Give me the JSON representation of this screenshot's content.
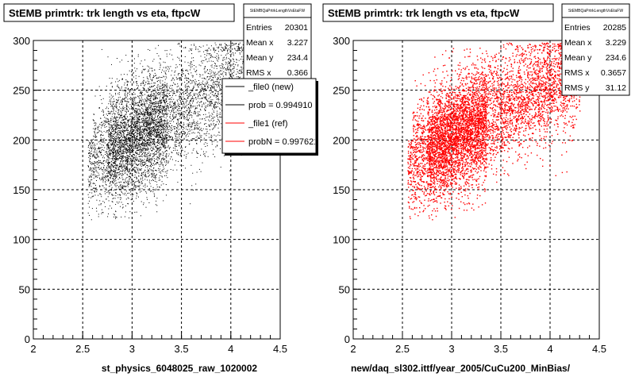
{
  "chart_data": [
    {
      "type": "scatter",
      "title": "StEMB primtrk: trk length vs eta, ftpcW",
      "xlabel": "st_physics_6048025_raw_1020002",
      "ylabel": "",
      "xlim": [
        2,
        4.5
      ],
      "ylim": [
        0,
        300
      ],
      "x_ticks": [
        "2",
        "2.5",
        "3",
        "3.5",
        "4",
        "4.5"
      ],
      "y_ticks": [
        "0",
        "50",
        "100",
        "150",
        "200",
        "250",
        "300"
      ],
      "grid": true,
      "marker_color": "#000000",
      "stats": {
        "name": "StEMBQaPrtrkLengthVsEtaFW",
        "rows": [
          {
            "label": "Entries",
            "value": "20301"
          },
          {
            "label": "Mean x",
            "value": "3.227"
          },
          {
            "label": "Mean y",
            "value": "234.4"
          },
          {
            "label": "RMS x",
            "value": "0.366"
          }
        ]
      },
      "legend": {
        "placement": "top-right",
        "entries": [
          {
            "label": "_file0 (new)",
            "color": "#000000"
          },
          {
            "label": "prob = 0.994910",
            "color": "#000000"
          },
          {
            "label": "_file1 (ref)",
            "color": "#ff0000"
          },
          {
            "label": "probN = 0.997621",
            "color": "#ff0000"
          }
        ]
      }
    },
    {
      "type": "scatter",
      "title": "StEMB primtrk: trk length vs eta, ftpcW",
      "xlabel": "new/daq_sl302.ittf/year_2005/CuCu200_MinBias/",
      "ylabel": "",
      "xlim": [
        2,
        4.5
      ],
      "ylim": [
        0,
        300
      ],
      "x_ticks": [
        "2",
        "2.5",
        "3",
        "3.5",
        "4",
        "4.5"
      ],
      "y_ticks": [
        "0",
        "50",
        "100",
        "150",
        "200",
        "250",
        "300"
      ],
      "grid": true,
      "marker_color": "#ff0000",
      "stats": {
        "name": "StEMBQaPrtrkLengthVsEtaFW",
        "rows": [
          {
            "label": "Entries",
            "value": "20285"
          },
          {
            "label": "Mean x",
            "value": "3.229"
          },
          {
            "label": "Mean y",
            "value": "234.6"
          },
          {
            "label": "RMS x",
            "value": "0.3657"
          },
          {
            "label": "RMS y",
            "value": "31.12"
          }
        ]
      }
    }
  ]
}
